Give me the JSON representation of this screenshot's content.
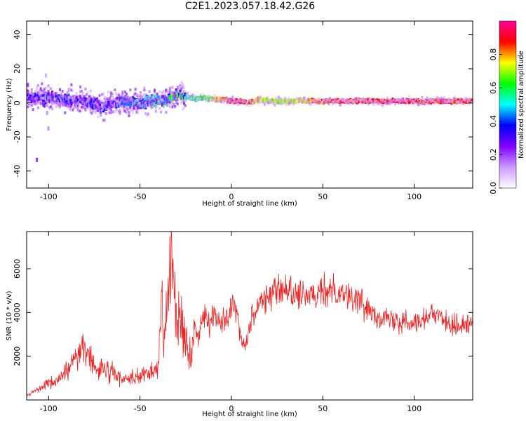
{
  "title": "C2E1.2023.057.18.42.G26",
  "chart_data": [
    {
      "type": "heatmap",
      "xlabel": "Height of straight line (km)",
      "ylabel": "Frequency (Hz)",
      "xlim": [
        -112,
        132
      ],
      "ylim": [
        -50,
        48
      ],
      "xticks": [
        -100,
        -50,
        0,
        50,
        100
      ],
      "yticks": [
        -40,
        -20,
        0,
        20,
        40
      ],
      "colorbar": {
        "label": "Normalized spectral amplitude",
        "range": [
          0,
          1
        ],
        "ticks": [
          0.0,
          0.2,
          0.4,
          0.6,
          0.8
        ],
        "tick_labels": [
          "0.0",
          "0.2",
          "0.4",
          "0.6",
          "0.8"
        ],
        "colormap": [
          "#ffffff",
          "#cc99ff",
          "#8000ff",
          "#0000ff",
          "#00ffff",
          "#00ff00",
          "#ffff00",
          "#ff0000",
          "#ff0099"
        ]
      },
      "spectral_ridge": {
        "x": [
          -112,
          -100,
          -90,
          -80,
          -70,
          -60,
          -50,
          -40,
          -35,
          -30,
          -25,
          -20,
          -15,
          -10,
          -5,
          0,
          5,
          10,
          15,
          20,
          30,
          40,
          50,
          60,
          70,
          80,
          90,
          100,
          110,
          120,
          132
        ],
        "y": [
          3,
          3,
          2,
          1,
          -2,
          1,
          0,
          1,
          2,
          5,
          4,
          2,
          3,
          2,
          2,
          1,
          1,
          0,
          2,
          1,
          1,
          1,
          1,
          1,
          1,
          1,
          1,
          1,
          1,
          1,
          1
        ],
        "amplitude": [
          0.3,
          0.3,
          0.3,
          0.3,
          0.3,
          0.35,
          0.4,
          0.45,
          0.5,
          0.55,
          0.55,
          0.6,
          0.65,
          0.75,
          0.85,
          0.95,
          0.95,
          0.9,
          0.8,
          0.75,
          0.75,
          0.8,
          0.9,
          0.95,
          0.95,
          0.95,
          0.95,
          0.95,
          0.95,
          0.95,
          0.95
        ]
      }
    },
    {
      "type": "line",
      "xlabel": "Height of straight line (km)",
      "ylabel": "SNR (10 * v/v)",
      "xlim": [
        -112,
        132
      ],
      "ylim": [
        0,
        7700
      ],
      "xticks": [
        -100,
        -50,
        0,
        50,
        100
      ],
      "yticks": [
        2000,
        4000,
        6000
      ],
      "color": "#ee2222",
      "series": [
        {
          "x": [
            -112,
            -105,
            -100,
            -95,
            -90,
            -85,
            -80,
            -78,
            -75,
            -70,
            -65,
            -60,
            -55,
            -50,
            -45,
            -40,
            -38,
            -37,
            -35,
            -33,
            -31,
            -30,
            -28,
            -25,
            -22,
            -20,
            -18,
            -15,
            -12,
            -10,
            -8,
            -5,
            -2,
            0,
            2,
            5,
            8,
            10,
            15,
            20,
            25,
            30,
            35,
            40,
            45,
            50,
            55,
            60,
            65,
            70,
            75,
            80,
            85,
            90,
            95,
            100,
            105,
            110,
            115,
            120,
            125,
            132
          ],
          "y": [
            200,
            500,
            700,
            900,
            1400,
            2000,
            2500,
            2200,
            1500,
            1300,
            1200,
            1000,
            1000,
            1100,
            1200,
            1400,
            5000,
            2500,
            4500,
            6500,
            4500,
            3500,
            4000,
            2500,
            1800,
            3400,
            3000,
            3800,
            3500,
            4000,
            3600,
            3700,
            3900,
            4200,
            4500,
            3000,
            2500,
            3500,
            4500,
            4800,
            5000,
            5000,
            4900,
            4700,
            4700,
            4900,
            5100,
            5000,
            4700,
            4500,
            4200,
            3900,
            3700,
            3600,
            3700,
            3600,
            3700,
            3900,
            3800,
            3500,
            3400,
            3500
          ]
        }
      ]
    }
  ]
}
